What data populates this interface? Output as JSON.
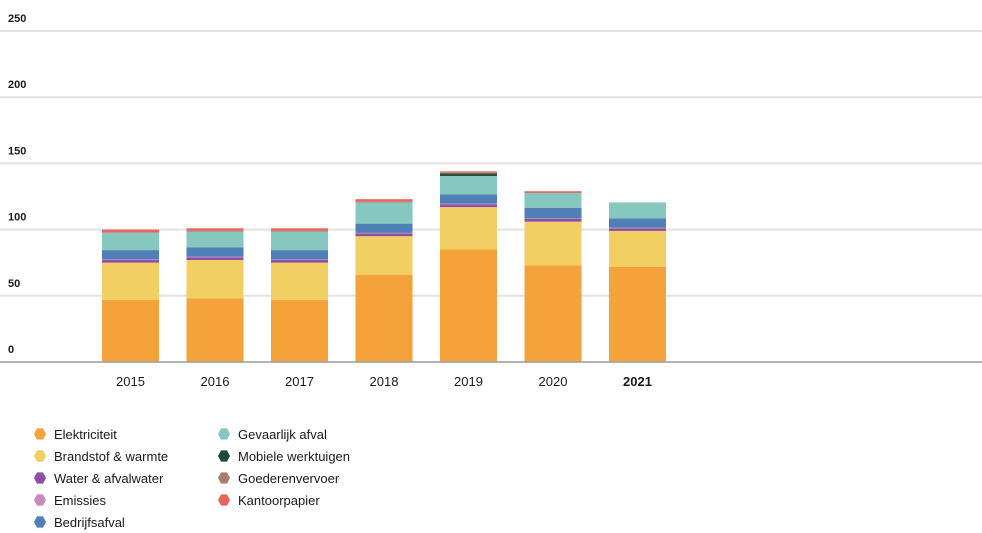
{
  "chart_data": {
    "type": "bar",
    "stacked": true,
    "categories": [
      "2015",
      "2016",
      "2017",
      "2018",
      "2019",
      "2020",
      "2021"
    ],
    "highlighted_category": "2021",
    "ylim": [
      0,
      250
    ],
    "yticks": [
      0,
      50,
      100,
      150,
      200,
      250
    ],
    "grid": true,
    "legend_position": "bottom-left",
    "series": [
      {
        "name": "Elektriciteit",
        "color": "#f4a23a",
        "values": [
          47,
          48,
          47,
          66,
          85,
          73,
          72
        ]
      },
      {
        "name": "Brandstof & warmte",
        "color": "#f2cf63",
        "values": [
          28,
          29,
          28,
          29,
          32,
          33,
          27
        ]
      },
      {
        "name": "Water & afvalwater",
        "color": "#8e4fa5",
        "values": [
          2,
          2,
          2,
          2,
          2,
          2,
          2
        ]
      },
      {
        "name": "Emissies",
        "color": "#c88bbf",
        "values": [
          0.5,
          0.5,
          0.5,
          0.5,
          0.5,
          0.5,
          0.5
        ]
      },
      {
        "name": "Bedrijfsafval",
        "color": "#4e7fb5",
        "values": [
          7,
          7,
          7,
          7,
          7,
          8,
          7
        ]
      },
      {
        "name": "Gevaarlijk afval",
        "color": "#86c7c0",
        "values": [
          13,
          12,
          14,
          16,
          14,
          11,
          12
        ]
      },
      {
        "name": "Mobiele werktuigen",
        "color": "#1f4a3d",
        "values": [
          0,
          0,
          0,
          0,
          2,
          0,
          0
        ]
      },
      {
        "name": "Goederenvervoer",
        "color": "#a97e6a",
        "values": [
          0.5,
          0.5,
          0.5,
          0.5,
          0.5,
          0.5,
          0
        ]
      },
      {
        "name": "Kantoorpapier",
        "color": "#e8665f",
        "values": [
          2,
          2,
          2,
          2,
          1,
          1,
          0
        ]
      }
    ]
  }
}
